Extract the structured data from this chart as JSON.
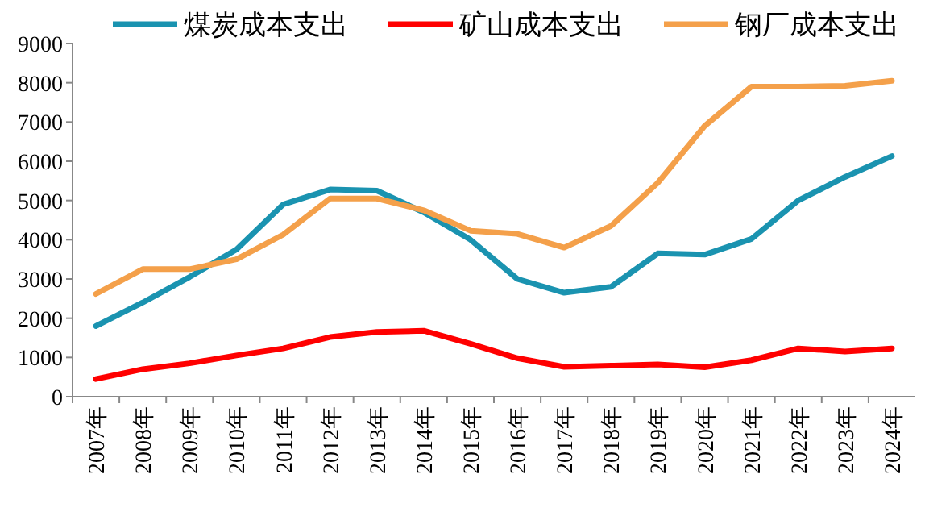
{
  "chart_data": {
    "type": "line",
    "categories": [
      "2007年",
      "2008年",
      "2009年",
      "2010年",
      "2011年",
      "2012年",
      "2013年",
      "2014年",
      "2015年",
      "2016年",
      "2017年",
      "2018年",
      "2019年",
      "2020年",
      "2021年",
      "2022年",
      "2023年",
      "2024年"
    ],
    "series": [
      {
        "name": "煤炭成本支出",
        "color": "#1a93b0",
        "values": [
          1800,
          2400,
          3050,
          3750,
          4900,
          5280,
          5250,
          4700,
          4000,
          3000,
          2650,
          2800,
          3650,
          3620,
          4020,
          5000,
          5600,
          6130
        ]
      },
      {
        "name": "矿山成本支出",
        "color": "#ff0000",
        "values": [
          450,
          700,
          850,
          1050,
          1230,
          1520,
          1650,
          1680,
          1350,
          980,
          760,
          790,
          820,
          750,
          930,
          1230,
          1150,
          1230
        ]
      },
      {
        "name": "钢厂成本支出",
        "color": "#f4a04a",
        "values": [
          2620,
          3250,
          3250,
          3500,
          4130,
          5050,
          5050,
          4750,
          4230,
          4150,
          3800,
          4350,
          5450,
          6900,
          7900,
          7900,
          7920,
          8050
        ]
      }
    ],
    "ylim": [
      0,
      9000
    ],
    "yticks": [
      0,
      1000,
      2000,
      3000,
      4000,
      5000,
      6000,
      7000,
      8000,
      9000
    ],
    "legend": "top",
    "grid": false
  }
}
